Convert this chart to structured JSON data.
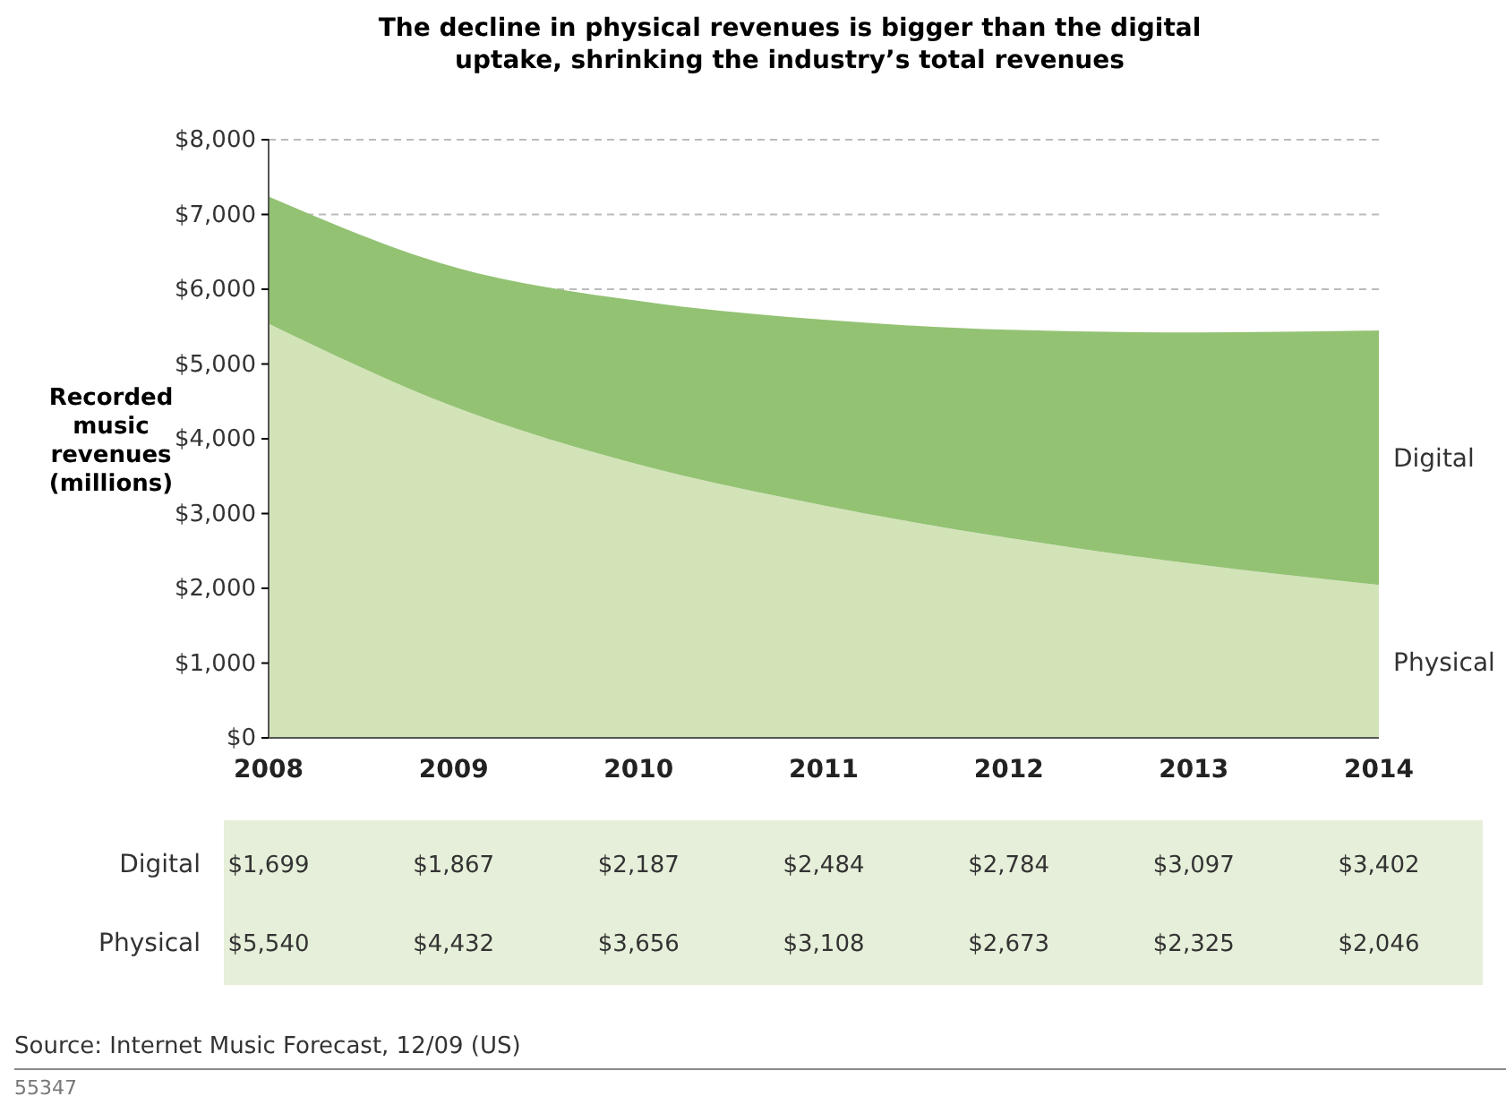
{
  "chart_data": {
    "type": "area",
    "stacked": true,
    "title": "The decline in physical revenues is bigger than the digital uptake, shrinking the industry’s total revenues",
    "ylabel": "Recorded music revenues (millions)",
    "categories": [
      "2008",
      "2009",
      "2010",
      "2011",
      "2012",
      "2013",
      "2014"
    ],
    "series": [
      {
        "name": "Physical",
        "color": "#d3e3b8",
        "values": [
          5540,
          4432,
          3656,
          3108,
          2673,
          2325,
          2046
        ],
        "value_labels": [
          "$5,540",
          "$4,432",
          "$3,656",
          "$3,108",
          "$2,673",
          "$2,325",
          "$2,046"
        ]
      },
      {
        "name": "Digital",
        "color": "#93c273",
        "values": [
          1699,
          1867,
          2187,
          2484,
          2784,
          3097,
          3402
        ],
        "value_labels": [
          "$1,699",
          "$1,867",
          "$2,187",
          "$2,484",
          "$2,784",
          "$3,097",
          "$3,402"
        ]
      }
    ],
    "ylim": [
      0,
      8000
    ],
    "yticks": [
      {
        "value": 0,
        "label": "$0"
      },
      {
        "value": 1000,
        "label": "$1,000"
      },
      {
        "value": 2000,
        "label": "$2,000"
      },
      {
        "value": 3000,
        "label": "$3,000"
      },
      {
        "value": 4000,
        "label": "$4,000"
      },
      {
        "value": 5000,
        "label": "$5,000"
      },
      {
        "value": 6000,
        "label": "$6,000"
      },
      {
        "value": 7000,
        "label": "$7,000"
      },
      {
        "value": 8000,
        "label": "$8,000"
      }
    ],
    "grid": "y",
    "annotations": [
      "Source: Internet Music Forecast, 12/09 (US)",
      "55347"
    ]
  }
}
